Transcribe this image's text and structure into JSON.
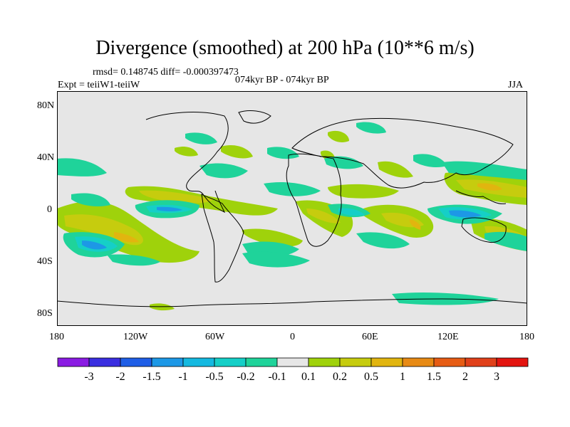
{
  "title": "Divergence (smoothed) at 200 hPa (10**6 m/s)",
  "stats": "rmsd= 0.148745 diff= -0.000397473",
  "experiment": "Expt = teiiW1-teiiW",
  "period": "074kyr BP - 074kyr BP",
  "season": "JJA",
  "lat_ticks": [
    "80N",
    "40N",
    "0",
    "40S",
    "80S"
  ],
  "lon_ticks": [
    "180",
    "120W",
    "60W",
    "0",
    "60E",
    "120E",
    "180"
  ],
  "colorbar": {
    "labels": [
      "-3",
      "-2",
      "-1.5",
      "-1",
      "-0.5",
      "-0.2",
      "-0.1",
      "0.1",
      "0.2",
      "0.5",
      "1",
      "1.5",
      "2",
      "3"
    ],
    "colors": [
      "#8a1be2",
      "#3a2ee0",
      "#1f5ee6",
      "#1d98e6",
      "#14b9e0",
      "#15cfc7",
      "#1fd39a",
      "#e6e6e6",
      "#9fd20b",
      "#c6cc0e",
      "#e1b50f",
      "#e78a14",
      "#e65c14",
      "#e0401a",
      "#e3140f"
    ]
  },
  "field_colors": {
    "ocean_background": "#e6e6e6",
    "neg_light": "#1fd39a",
    "neg_mid": "#15cfc7",
    "neg_strong": "#1d98e6",
    "pos_light": "#9fd20b",
    "pos_mid": "#c6cc0e",
    "pos_strong": "#e1b50f"
  }
}
